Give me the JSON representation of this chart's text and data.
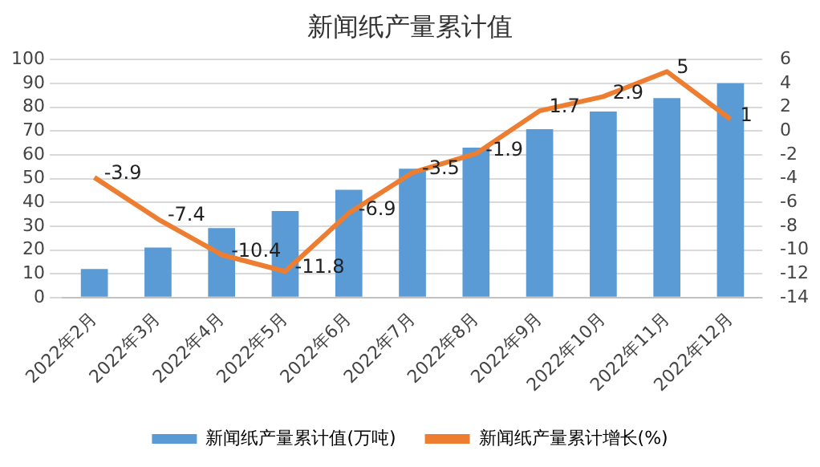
{
  "chart_data": {
    "type": "bar",
    "title": "新闻纸产量累计值",
    "categories": [
      "2022年2月",
      "2022年3月",
      "2022年4月",
      "2022年5月",
      "2022年6月",
      "2022年7月",
      "2022年8月",
      "2022年9月",
      "2022年10月",
      "2022年11月",
      "2022年12月"
    ],
    "series": [
      {
        "name": "新闻纸产量累计值(万吨)",
        "color": "#5b9bd5",
        "values": [
          12,
          21,
          29.2,
          36.4,
          45.3,
          54.2,
          63,
          70.8,
          78.2,
          83.9,
          90.1
        ]
      },
      {
        "name": "新闻纸产量累计增长(%)",
        "type": "line",
        "axis": "y2",
        "color": "#ed7d31",
        "values": [
          -3.9,
          -7.4,
          -10.4,
          -11.8,
          -6.9,
          -3.5,
          -1.9,
          1.7,
          2.9,
          5,
          1
        ],
        "value_labels": [
          "-3.9",
          "-7.4",
          "-10.4",
          "-11.8",
          "-6.9",
          "-3.5",
          "-1.9",
          "1.7",
          "2.9",
          "5",
          "1"
        ]
      }
    ],
    "ylim": [
      0,
      100
    ],
    "yticks": [
      0,
      10,
      20,
      30,
      40,
      50,
      60,
      70,
      80,
      90,
      100
    ],
    "y2lim": [
      -14,
      6
    ],
    "y2ticks": [
      -14,
      -12,
      -10,
      -8,
      -6,
      -4,
      -2,
      0,
      2,
      4,
      6
    ],
    "grid": "y",
    "legend": "bottom",
    "marker": "none"
  }
}
